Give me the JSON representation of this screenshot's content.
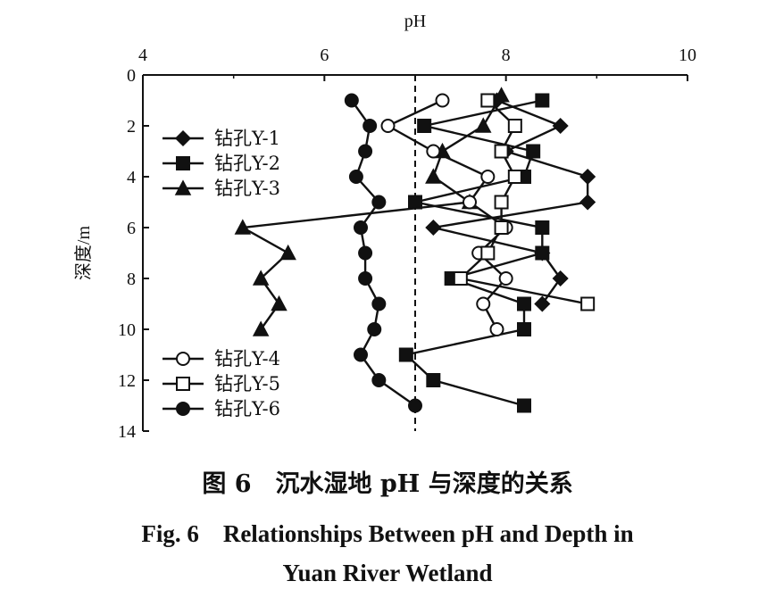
{
  "chart_data": {
    "type": "scatter",
    "xlabel": "pH",
    "ylabel": "深度/m",
    "xlim": [
      4,
      10
    ],
    "ylim": [
      0,
      14
    ],
    "x_ticks": [
      "4",
      "6",
      "8",
      "10"
    ],
    "y_ticks": [
      "0",
      "2",
      "4",
      "6",
      "8",
      "10",
      "12",
      "14"
    ],
    "x_axis_position": "top",
    "y_axis_inverted": true,
    "reference_line": {
      "x": 7,
      "style": "dashed"
    },
    "legend_top": {
      "placement": "left-upper",
      "entries": [
        "钻孔Y-1",
        "钻孔Y-2",
        "钻孔Y-3"
      ]
    },
    "legend_bottom": {
      "placement": "left-lower",
      "entries": [
        "钻孔Y-4",
        "钻孔Y-5",
        "钻孔Y-6"
      ]
    },
    "series": [
      {
        "name": "钻孔Y-1",
        "marker": "diamond-filled",
        "points": [
          [
            7.9,
            1
          ],
          [
            8.6,
            2
          ],
          [
            8.0,
            3
          ],
          [
            8.9,
            4
          ],
          [
            8.9,
            5
          ],
          [
            7.2,
            6
          ],
          [
            8.4,
            7
          ],
          [
            8.6,
            8
          ],
          [
            8.4,
            9
          ]
        ]
      },
      {
        "name": "钻孔Y-2",
        "marker": "square-filled",
        "points": [
          [
            8.4,
            1
          ],
          [
            7.1,
            2
          ],
          [
            8.3,
            3
          ],
          [
            8.2,
            4
          ],
          [
            7.0,
            5
          ],
          [
            8.4,
            6
          ],
          [
            8.4,
            7
          ],
          [
            7.4,
            8
          ],
          [
            8.2,
            9
          ],
          [
            8.2,
            10
          ],
          [
            6.9,
            11
          ],
          [
            7.2,
            12
          ],
          [
            8.2,
            13
          ]
        ]
      },
      {
        "name": "钻孔Y-3",
        "marker": "triangle-filled",
        "points": [
          [
            7.95,
            0.8
          ],
          [
            7.75,
            2
          ],
          [
            7.3,
            3
          ],
          [
            7.2,
            4
          ],
          [
            7.6,
            5
          ],
          [
            5.1,
            6
          ],
          [
            5.6,
            7
          ],
          [
            5.3,
            8
          ],
          [
            5.5,
            9
          ],
          [
            5.3,
            10
          ]
        ]
      },
      {
        "name": "钻孔Y-4",
        "marker": "circle-open",
        "points": [
          [
            7.3,
            1
          ],
          [
            6.7,
            2
          ],
          [
            7.2,
            3
          ],
          [
            7.8,
            4
          ],
          [
            7.6,
            5
          ],
          [
            8.0,
            6
          ],
          [
            7.7,
            7
          ],
          [
            8.0,
            8
          ],
          [
            7.75,
            9
          ],
          [
            7.9,
            10
          ]
        ]
      },
      {
        "name": "钻孔Y-5",
        "marker": "square-open",
        "points": [
          [
            7.8,
            1
          ],
          [
            8.1,
            2
          ],
          [
            7.95,
            3
          ],
          [
            8.1,
            4
          ],
          [
            7.95,
            5
          ],
          [
            7.95,
            6
          ],
          [
            7.8,
            7
          ],
          [
            7.5,
            8
          ],
          [
            8.9,
            9
          ]
        ]
      },
      {
        "name": "钻孔Y-6",
        "marker": "circle-filled",
        "points": [
          [
            6.3,
            1
          ],
          [
            6.5,
            2
          ],
          [
            6.45,
            3
          ],
          [
            6.35,
            4
          ],
          [
            6.6,
            5
          ],
          [
            6.4,
            6
          ],
          [
            6.45,
            7
          ],
          [
            6.45,
            8
          ],
          [
            6.6,
            9
          ],
          [
            6.55,
            10
          ],
          [
            6.4,
            11
          ],
          [
            6.6,
            12
          ],
          [
            7.0,
            13
          ]
        ]
      }
    ]
  },
  "caption": {
    "cn": "图 6　沉水湿地 pH 与深度的关系",
    "en_line1": "Fig. 6　Relationships Between pH and Depth in",
    "en_line2": "Yuan River Wetland"
  }
}
